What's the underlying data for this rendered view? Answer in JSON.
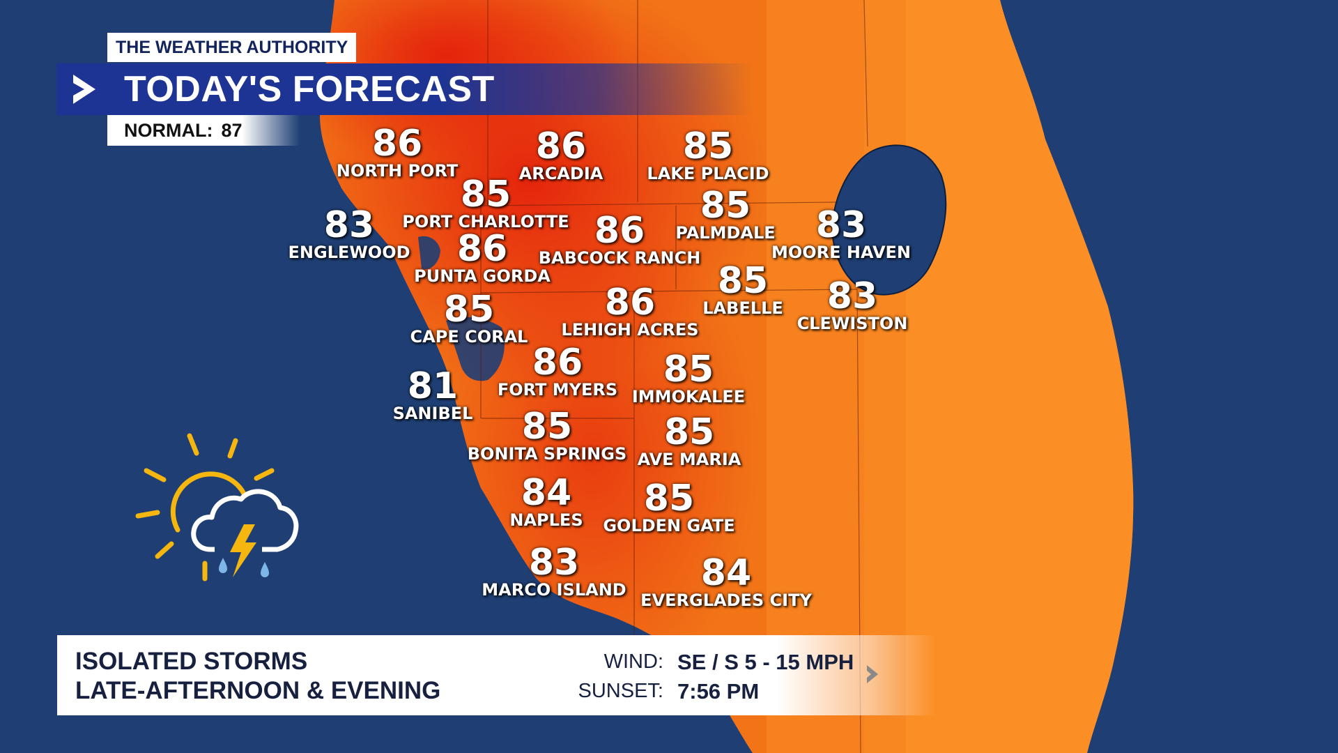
{
  "header": {
    "brand": "THE WEATHER AUTHORITY",
    "title": "TODAY'S FORECAST",
    "normal_label": "NORMAL:",
    "normal_value": "87"
  },
  "cities": [
    {
      "name": "NORTH PORT",
      "temp": "86"
    },
    {
      "name": "ARCADIA",
      "temp": "86"
    },
    {
      "name": "LAKE PLACID",
      "temp": "85"
    },
    {
      "name": "PORT CHARLOTTE",
      "temp": "85"
    },
    {
      "name": "PALMDALE",
      "temp": "85"
    },
    {
      "name": "ENGLEWOOD",
      "temp": "83"
    },
    {
      "name": "BABCOCK RANCH",
      "temp": "86"
    },
    {
      "name": "MOORE HAVEN",
      "temp": "83"
    },
    {
      "name": "PUNTA GORDA",
      "temp": "86"
    },
    {
      "name": "LABELLE",
      "temp": "85"
    },
    {
      "name": "CAPE CORAL",
      "temp": "85"
    },
    {
      "name": "LEHIGH ACRES",
      "temp": "86"
    },
    {
      "name": "CLEWISTON",
      "temp": "83"
    },
    {
      "name": "FORT MYERS",
      "temp": "86"
    },
    {
      "name": "IMMOKALEE",
      "temp": "85"
    },
    {
      "name": "SANIBEL",
      "temp": "81"
    },
    {
      "name": "BONITA SPRINGS",
      "temp": "85"
    },
    {
      "name": "AVE MARIA",
      "temp": "85"
    },
    {
      "name": "NAPLES",
      "temp": "84"
    },
    {
      "name": "GOLDEN GATE",
      "temp": "85"
    },
    {
      "name": "MARCO ISLAND",
      "temp": "83"
    },
    {
      "name": "EVERGLADES CITY",
      "temp": "84"
    }
  ],
  "footer": {
    "condition_line1": "ISOLATED STORMS",
    "condition_line2": "LATE-AFTERNOON & EVENING",
    "wind_label": "WIND:",
    "wind_value": "SE / S  5 - 15 MPH",
    "sunset_label": "SUNSET:",
    "sunset_value": "7:56 PM"
  },
  "icons": {
    "weather": "sun-cloud-thunderstorm-icon",
    "title": "chevron-right-icon",
    "more": "chevron-right-icon"
  },
  "colors": {
    "water": "#1f3f74",
    "land_hot": "#e82a0e",
    "land_warm": "#f57a1c",
    "land_mild": "#fb8f26",
    "brand_blue": "#1d3494"
  }
}
